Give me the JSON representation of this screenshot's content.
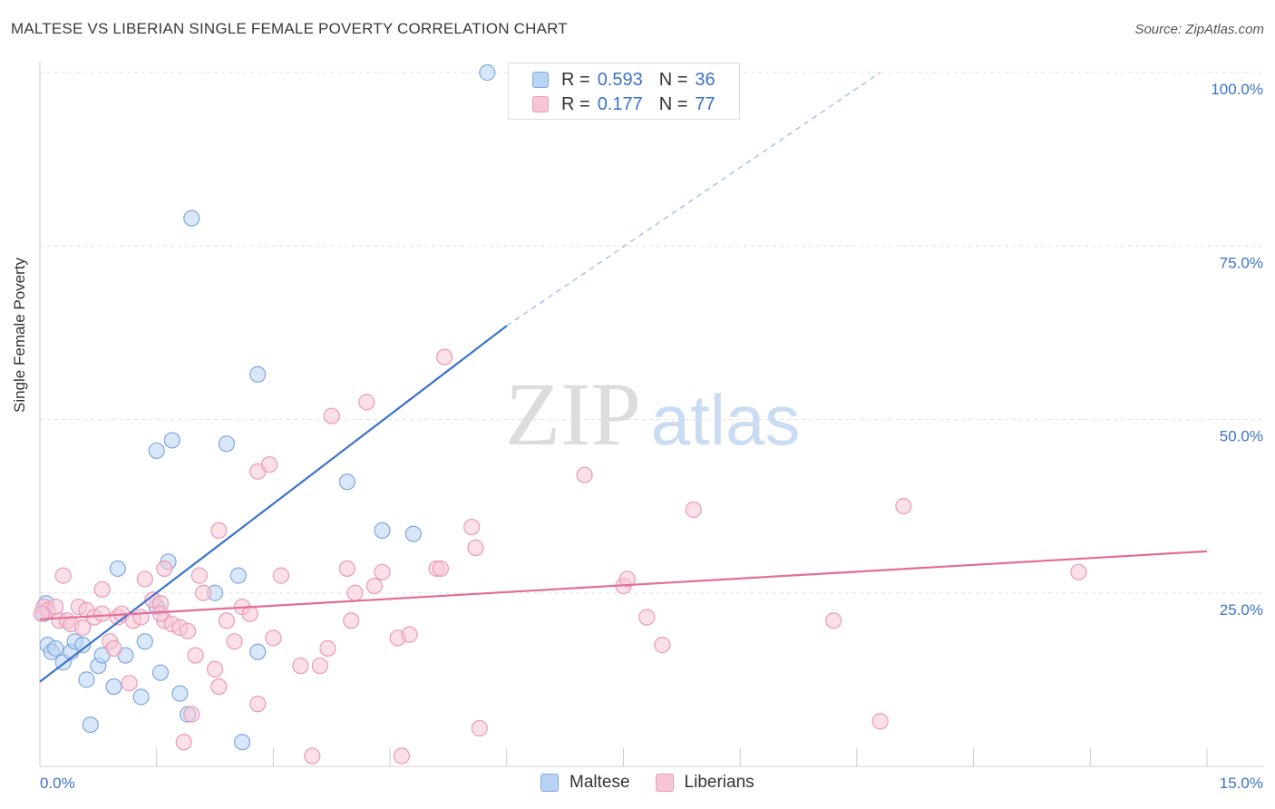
{
  "header": {
    "title": "MALTESE VS LIBERIAN SINGLE FEMALE POVERTY CORRELATION CHART",
    "source": "Source: ZipAtlas.com"
  },
  "watermark": {
    "zip": "ZIP",
    "atlas": "atlas"
  },
  "colors": {
    "blue": "#3b73c9",
    "blue_fill": "#b9d3f5",
    "blue_stroke": "#7fa8dc",
    "pink": "#e26d98",
    "pink_fill": "#f7c6d6",
    "pink_stroke": "#eb9ab6",
    "grid": "#e3e3e3",
    "tick_text": "#3b73c9"
  },
  "legend": {
    "rows": [
      {
        "r_label": "R =",
        "r_value": "0.593",
        "n_label": "N =",
        "n_value": "36"
      },
      {
        "r_label": "R =",
        "r_value": "0.177",
        "n_label": "N =",
        "n_value": "77"
      }
    ]
  },
  "bottom_legend": {
    "maltese": "Maltese",
    "liberians": "Liberians"
  },
  "chart_data": {
    "type": "scatter",
    "title": "MALTESE VS LIBERIAN SINGLE FEMALE POVERTY CORRELATION CHART",
    "xlabel": "",
    "ylabel": "Single Female Poverty",
    "xlim": [
      0,
      15
    ],
    "ylim": [
      0,
      100
    ],
    "x_tick_labels": [
      "0.0%",
      "15.0%"
    ],
    "y_ticks": [
      25,
      50,
      75,
      100
    ],
    "y_tick_labels": [
      "25.0%",
      "50.0%",
      "75.0%",
      "100.0%"
    ],
    "grid": true,
    "series": [
      {
        "name": "Maltese",
        "color": "#3b73c9",
        "r": 0.593,
        "n": 36,
        "trend": {
          "x0": 0,
          "y0": 12.2,
          "x1": 6.0,
          "y1": 63.5,
          "dash_to_x": 10.8,
          "dash_to_y": 100
        },
        "points": [
          [
            0.05,
            22.0
          ],
          [
            0.08,
            23.5
          ],
          [
            0.1,
            17.5
          ],
          [
            0.15,
            16.5
          ],
          [
            0.2,
            17.0
          ],
          [
            0.3,
            15.0
          ],
          [
            0.4,
            16.5
          ],
          [
            0.45,
            18.0
          ],
          [
            0.55,
            17.5
          ],
          [
            0.6,
            12.5
          ],
          [
            0.75,
            14.5
          ],
          [
            0.8,
            16.0
          ],
          [
            0.65,
            6.0
          ],
          [
            0.95,
            11.5
          ],
          [
            1.0,
            28.5
          ],
          [
            1.1,
            16.0
          ],
          [
            1.3,
            10.0
          ],
          [
            1.35,
            18.0
          ],
          [
            1.5,
            23.0
          ],
          [
            1.55,
            13.5
          ],
          [
            1.65,
            29.5
          ],
          [
            1.5,
            45.5
          ],
          [
            1.7,
            47.0
          ],
          [
            1.8,
            10.5
          ],
          [
            1.9,
            7.5
          ],
          [
            1.95,
            79.0
          ],
          [
            2.25,
            25.0
          ],
          [
            2.4,
            46.5
          ],
          [
            2.55,
            27.5
          ],
          [
            2.8,
            16.5
          ],
          [
            2.8,
            56.5
          ],
          [
            2.6,
            3.5
          ],
          [
            3.95,
            41.0
          ],
          [
            4.4,
            34.0
          ],
          [
            4.8,
            33.5
          ],
          [
            5.75,
            100.0
          ]
        ]
      },
      {
        "name": "Liberians",
        "color": "#e26d98",
        "r": 0.177,
        "n": 77,
        "trend": {
          "x0": 0,
          "y0": 21.2,
          "x1": 15.0,
          "y1": 31.0
        },
        "points": [
          [
            0.05,
            23.0
          ],
          [
            0.1,
            22.5
          ],
          [
            0.2,
            23.0
          ],
          [
            0.25,
            21.0
          ],
          [
            0.3,
            27.5
          ],
          [
            0.35,
            21.0
          ],
          [
            0.4,
            20.5
          ],
          [
            0.5,
            23.0
          ],
          [
            0.55,
            20.0
          ],
          [
            0.6,
            22.5
          ],
          [
            0.7,
            21.5
          ],
          [
            0.8,
            22.0
          ],
          [
            0.8,
            25.5
          ],
          [
            0.9,
            18.0
          ],
          [
            0.95,
            17.0
          ],
          [
            1.0,
            21.5
          ],
          [
            1.05,
            22.0
          ],
          [
            1.2,
            21.0
          ],
          [
            1.15,
            12.0
          ],
          [
            1.3,
            21.5
          ],
          [
            1.35,
            27.0
          ],
          [
            1.45,
            24.0
          ],
          [
            1.55,
            23.5
          ],
          [
            1.6,
            21.0
          ],
          [
            1.55,
            22.0
          ],
          [
            1.6,
            28.5
          ],
          [
            1.7,
            20.5
          ],
          [
            1.8,
            20.0
          ],
          [
            1.9,
            19.5
          ],
          [
            1.85,
            3.5
          ],
          [
            1.95,
            7.5
          ],
          [
            2.0,
            16.0
          ],
          [
            2.05,
            27.5
          ],
          [
            2.1,
            25.0
          ],
          [
            2.25,
            14.0
          ],
          [
            2.3,
            11.5
          ],
          [
            2.3,
            34.0
          ],
          [
            2.4,
            21.0
          ],
          [
            2.5,
            18.0
          ],
          [
            2.6,
            23.0
          ],
          [
            2.7,
            22.0
          ],
          [
            2.8,
            9.0
          ],
          [
            2.8,
            42.5
          ],
          [
            2.95,
            43.5
          ],
          [
            3.0,
            18.5
          ],
          [
            3.1,
            27.5
          ],
          [
            3.35,
            14.5
          ],
          [
            3.5,
            1.5
          ],
          [
            3.6,
            14.5
          ],
          [
            3.7,
            17.0
          ],
          [
            3.75,
            50.5
          ],
          [
            3.95,
            28.5
          ],
          [
            4.0,
            21.0
          ],
          [
            4.05,
            25.0
          ],
          [
            4.2,
            52.5
          ],
          [
            4.3,
            26.0
          ],
          [
            4.4,
            28.0
          ],
          [
            4.6,
            18.5
          ],
          [
            4.65,
            1.5
          ],
          [
            4.75,
            19.0
          ],
          [
            5.1,
            28.5
          ],
          [
            5.15,
            28.5
          ],
          [
            5.2,
            59.0
          ],
          [
            5.55,
            34.5
          ],
          [
            5.6,
            31.5
          ],
          [
            5.65,
            5.5
          ],
          [
            7.0,
            42.0
          ],
          [
            7.5,
            26.0
          ],
          [
            7.55,
            27.0
          ],
          [
            7.8,
            21.5
          ],
          [
            8.0,
            17.5
          ],
          [
            8.4,
            37.0
          ],
          [
            10.2,
            21.0
          ],
          [
            10.8,
            6.5
          ],
          [
            11.1,
            37.5
          ],
          [
            13.35,
            28.0
          ],
          [
            0.02,
            22.0
          ]
        ]
      }
    ]
  }
}
